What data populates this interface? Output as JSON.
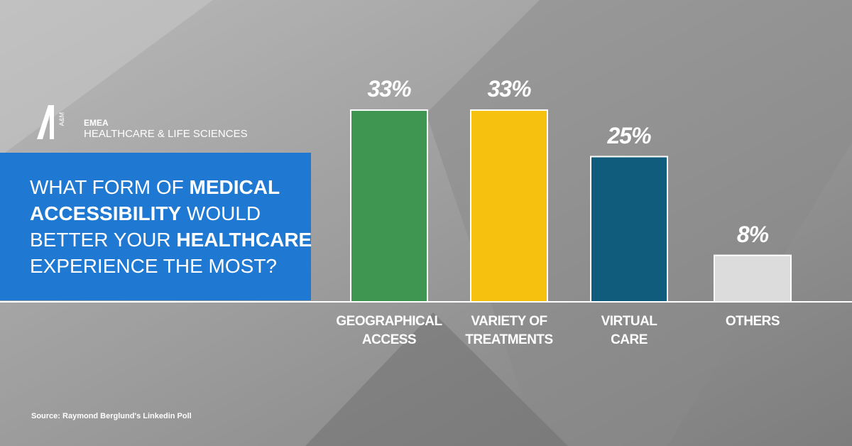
{
  "brand": {
    "mark": "A&M",
    "region": "EMEA",
    "division": "HEALTHCARE & LIFE SCIENCES"
  },
  "question": [
    [
      {
        "text": "WHAT FORM OF ",
        "bold": false
      },
      {
        "text": "MEDICAL",
        "bold": true
      }
    ],
    [
      {
        "text": "ACCESSIBILITY",
        "bold": true
      },
      {
        "text": " WOULD",
        "bold": false
      }
    ],
    [
      {
        "text": "BETTER YOUR ",
        "bold": false
      },
      {
        "text": "HEALTHCARE",
        "bold": true
      }
    ],
    [
      {
        "text": "EXPERIENCE THE MOST?",
        "bold": false
      }
    ]
  ],
  "source": "Source: Raymond Berglund's Linkedin Poll",
  "chart_data": {
    "type": "bar",
    "categories": [
      "GEOGRAPHICAL\nACCESS",
      "VARIETY OF\nTREATMENTS",
      "VIRTUAL\nCARE",
      "OTHERS"
    ],
    "values": [
      33,
      33,
      25,
      8
    ],
    "value_labels": [
      "33%",
      "33%",
      "25%",
      "8%"
    ],
    "colors": [
      "#3f9651",
      "#f7c20f",
      "#0f5c7c",
      "#dcdcdc"
    ]
  }
}
